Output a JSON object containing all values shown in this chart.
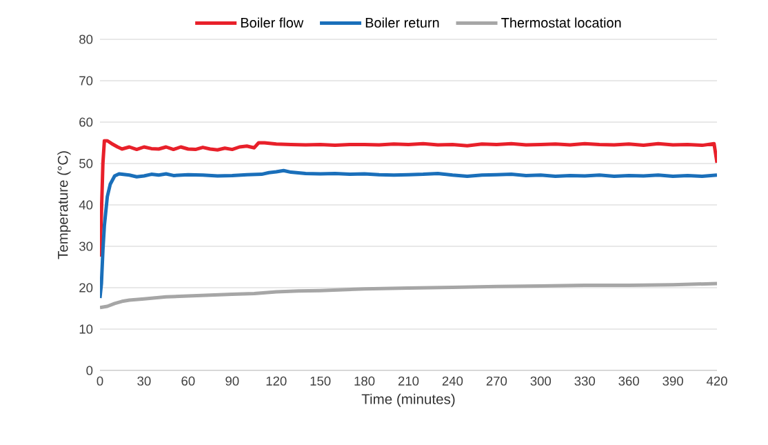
{
  "chart_data": {
    "type": "line",
    "xlabel": "Time (minutes)",
    "ylabel": "Temperature (°C)",
    "xlim": [
      0,
      420
    ],
    "ylim": [
      0,
      80
    ],
    "xticks": [
      0,
      30,
      60,
      90,
      120,
      150,
      180,
      210,
      240,
      270,
      300,
      330,
      360,
      390,
      420
    ],
    "yticks": [
      0,
      10,
      20,
      30,
      40,
      50,
      60,
      70,
      80
    ],
    "grid": "y",
    "legend": "top",
    "marker": "none",
    "line_style": "solid",
    "series": [
      {
        "name": "Boiler flow",
        "color": "#e8202a",
        "x": [
          0,
          1,
          2,
          3,
          5,
          8,
          12,
          15,
          20,
          25,
          30,
          35,
          40,
          45,
          50,
          55,
          60,
          65,
          70,
          75,
          80,
          85,
          90,
          95,
          100,
          105,
          108,
          112,
          120,
          130,
          140,
          150,
          160,
          170,
          180,
          190,
          200,
          210,
          220,
          230,
          240,
          250,
          260,
          270,
          280,
          290,
          300,
          310,
          320,
          330,
          340,
          350,
          360,
          370,
          380,
          390,
          400,
          410,
          418,
          420
        ],
        "values": [
          27.5,
          38,
          50,
          55.5,
          55.5,
          54.8,
          54,
          53.5,
          54,
          53.4,
          54,
          53.6,
          53.5,
          54,
          53.4,
          54,
          53.5,
          53.4,
          53.9,
          53.5,
          53.3,
          53.7,
          53.4,
          54,
          54.2,
          53.8,
          55,
          55,
          54.7,
          54.6,
          54.5,
          54.6,
          54.4,
          54.6,
          54.6,
          54.5,
          54.7,
          54.6,
          54.8,
          54.5,
          54.6,
          54.3,
          54.7,
          54.6,
          54.8,
          54.5,
          54.6,
          54.7,
          54.5,
          54.8,
          54.6,
          54.5,
          54.7,
          54.4,
          54.8,
          54.5,
          54.6,
          54.4,
          54.8,
          50.2
        ]
      },
      {
        "name": "Boiler return",
        "color": "#1a6fba",
        "x": [
          0,
          1,
          2,
          3,
          5,
          7,
          10,
          13,
          20,
          25,
          30,
          35,
          40,
          45,
          50,
          60,
          70,
          80,
          90,
          100,
          110,
          115,
          120,
          125,
          130,
          140,
          150,
          160,
          170,
          180,
          190,
          200,
          210,
          220,
          230,
          240,
          250,
          260,
          270,
          280,
          290,
          300,
          310,
          320,
          330,
          340,
          350,
          360,
          370,
          380,
          390,
          400,
          410,
          420
        ],
        "values": [
          17.5,
          21,
          29,
          35,
          42,
          45,
          47,
          47.5,
          47.2,
          46.8,
          47,
          47.4,
          47.2,
          47.5,
          47.1,
          47.3,
          47.2,
          47,
          47.1,
          47.3,
          47.4,
          47.8,
          48,
          48.3,
          47.9,
          47.6,
          47.5,
          47.6,
          47.4,
          47.5,
          47.3,
          47.2,
          47.3,
          47.4,
          47.6,
          47.2,
          46.9,
          47.2,
          47.3,
          47.4,
          47.1,
          47.2,
          46.9,
          47.1,
          47,
          47.2,
          46.9,
          47.1,
          47,
          47.2,
          46.9,
          47.1,
          46.9,
          47.2
        ]
      },
      {
        "name": "Thermostat location",
        "color": "#a6a6a6",
        "x": [
          0,
          5,
          10,
          15,
          20,
          30,
          45,
          60,
          75,
          90,
          105,
          120,
          135,
          150,
          165,
          180,
          210,
          240,
          270,
          300,
          330,
          360,
          390,
          420
        ],
        "values": [
          15.2,
          15.5,
          16.2,
          16.7,
          17,
          17.3,
          17.8,
          18,
          18.2,
          18.4,
          18.6,
          19,
          19.2,
          19.3,
          19.5,
          19.7,
          19.9,
          20.1,
          20.3,
          20.4,
          20.6,
          20.6,
          20.7,
          21
        ]
      }
    ]
  }
}
